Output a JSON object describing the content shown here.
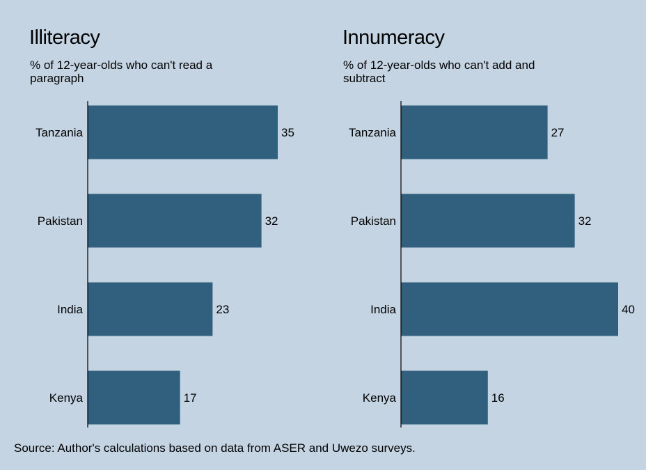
{
  "source": "Source: Author's calculations based on data from ASER and Uwezo surveys.",
  "colors": {
    "background": "#c4d4e3",
    "bar": "#30607e",
    "axis": "#000000"
  },
  "chart_data": [
    {
      "type": "bar",
      "orientation": "horizontal",
      "title": "Illiteracy",
      "subtitle": "% of 12-year-olds who can't read a paragraph",
      "categories": [
        "Tanzania",
        "Pakistan",
        "India",
        "Kenya"
      ],
      "values": [
        35,
        32,
        23,
        17
      ],
      "xlim": [
        0,
        40
      ],
      "grid": false
    },
    {
      "type": "bar",
      "orientation": "horizontal",
      "title": "Innumeracy",
      "subtitle": "% of 12-year-olds who can't add and subtract",
      "categories": [
        "Tanzania",
        "Pakistan",
        "India",
        "Kenya"
      ],
      "values": [
        27,
        32,
        40,
        16
      ],
      "xlim": [
        0,
        40
      ],
      "grid": false
    }
  ]
}
